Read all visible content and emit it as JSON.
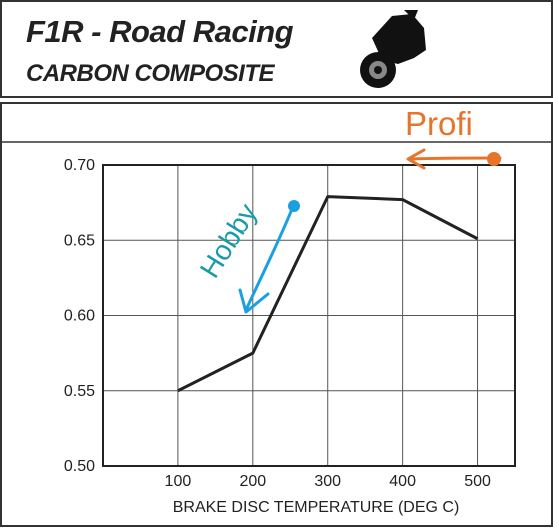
{
  "header": {
    "title": "F1R - Road Racing",
    "subtitle": "CARBON COMPOSITE",
    "icon": "motorcycle-icon"
  },
  "annotations": {
    "profi": "Profi",
    "hobby": "Hobby",
    "profi_color": "#e8742a",
    "hobby_color": "#1aa0e0"
  },
  "chart_data": {
    "type": "line",
    "title": "",
    "xlabel": "BRAKE DISC TEMPERATURE (DEG C)",
    "ylabel": "",
    "x_ticks": [
      100,
      200,
      300,
      400,
      500
    ],
    "y_ticks": [
      "0.50",
      "0.55",
      "0.60",
      "0.65",
      "0.70"
    ],
    "xlim": [
      0,
      550
    ],
    "ylim": [
      0.5,
      0.7
    ],
    "grid": true,
    "series": [
      {
        "x": [
          100,
          200,
          300,
          400,
          500
        ],
        "y": [
          0.55,
          0.575,
          0.679,
          0.677,
          0.651
        ],
        "color": "#222222"
      }
    ]
  }
}
